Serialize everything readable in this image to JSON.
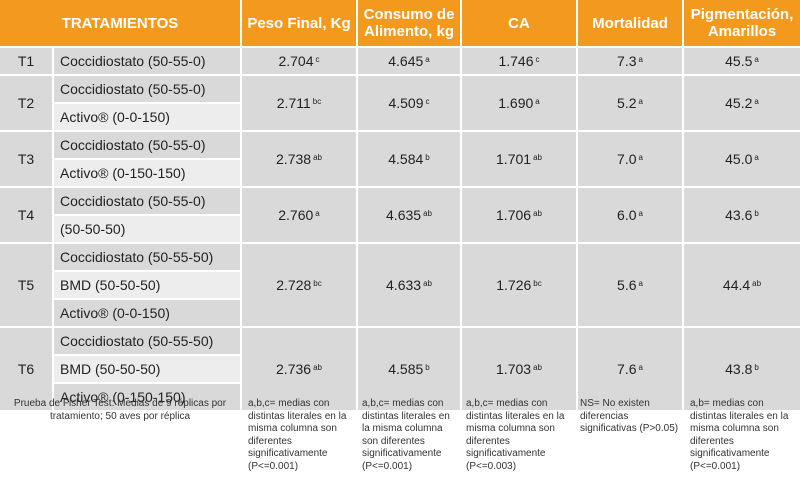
{
  "table": {
    "headers": {
      "tratamientos": "TRATAMIENTOS",
      "peso": "Peso Final,  Kg",
      "consumo": "Consumo de Alimento,  kg",
      "ca": "CA",
      "mortalidad": "Mortalidad",
      "pigmentacion": "Pigmentación, Amarillos"
    },
    "rows": [
      {
        "id": "T1",
        "lines": [
          "Coccidiostato (50-55-0)"
        ],
        "peso": {
          "v": "2.704",
          "s": "c"
        },
        "consumo": {
          "v": "4.645",
          "s": "a"
        },
        "ca": {
          "v": "1.746",
          "s": "c"
        },
        "mortalidad": {
          "v": "7.3",
          "s": "a"
        },
        "pigmentacion": {
          "v": "45.5",
          "s": "a"
        }
      },
      {
        "id": "T2",
        "lines": [
          "Coccidiostato (50-55-0)",
          "Activo® (0-0-150)"
        ],
        "peso": {
          "v": "2.711",
          "s": "bc"
        },
        "consumo": {
          "v": "4.509",
          "s": "c"
        },
        "ca": {
          "v": "1.690",
          "s": "a"
        },
        "mortalidad": {
          "v": "5.2",
          "s": "a"
        },
        "pigmentacion": {
          "v": "45.2",
          "s": "a"
        }
      },
      {
        "id": "T3",
        "lines": [
          "Coccidiostato (50-55-0)",
          "Activo® (0-150-150)"
        ],
        "peso": {
          "v": "2.738",
          "s": "ab"
        },
        "consumo": {
          "v": "4.584",
          "s": "b"
        },
        "ca": {
          "v": "1.701",
          "s": "ab"
        },
        "mortalidad": {
          "v": "7.0",
          "s": "a"
        },
        "pigmentacion": {
          "v": "45.0",
          "s": "a"
        }
      },
      {
        "id": "T4",
        "lines": [
          "Coccidiostato (50-55-0)",
          "(50-50-50)"
        ],
        "peso": {
          "v": "2.760",
          "s": "a"
        },
        "consumo": {
          "v": "4.635",
          "s": "ab"
        },
        "ca": {
          "v": "1.706",
          "s": "ab"
        },
        "mortalidad": {
          "v": "6.0",
          "s": "a"
        },
        "pigmentacion": {
          "v": "43.6",
          "s": "b"
        }
      },
      {
        "id": "T5",
        "lines": [
          "Coccidiostato (50-55-50)",
          "BMD (50-50-50)",
          "Activo® (0-0-150)"
        ],
        "peso": {
          "v": "2.728",
          "s": "bc"
        },
        "consumo": {
          "v": "4.633",
          "s": "ab"
        },
        "ca": {
          "v": "1.726",
          "s": "bc"
        },
        "mortalidad": {
          "v": "5.6",
          "s": "a"
        },
        "pigmentacion": {
          "v": "44.4",
          "s": "ab"
        }
      },
      {
        "id": "T6",
        "lines": [
          "Coccidiostato (50-55-50)",
          "BMD (50-50-50)",
          "Activo® (0-150-150)"
        ],
        "peso": {
          "v": "2.736",
          "s": "ab"
        },
        "consumo": {
          "v": "4.585",
          "s": "b"
        },
        "ca": {
          "v": "1.703",
          "s": "ab"
        },
        "mortalidad": {
          "v": "7.6",
          "s": "a"
        },
        "pigmentacion": {
          "v": "43.8",
          "s": "b"
        }
      }
    ]
  },
  "footnotes": {
    "tratamientos": "Prueba de  Fisher Test: Medias de 9 réplicas por tratamiento;  50 aves por réplica",
    "peso": "a,b,c= medias con distintas literales en la misma columna son diferentes significativamente (P<=0.001)",
    "consumo": "a,b,c= medias con distintas literales en la misma columna son diferentes significativamente (P<=0.001)",
    "ca": "a,b,c= medias con distintas literales en la misma columna son diferentes significativamente (P<=0.003)",
    "mortalidad": "NS= No existen diferencias significativas (P>0.05)",
    "pigmentacion": "a,b= medias con distintas literales en la misma columna son diferentes significativamente (P<=0.001)"
  },
  "colors": {
    "header_bg": "#f39a1e",
    "cell_bg": "#d9d9d9",
    "cell_alt_bg": "#ededed"
  }
}
